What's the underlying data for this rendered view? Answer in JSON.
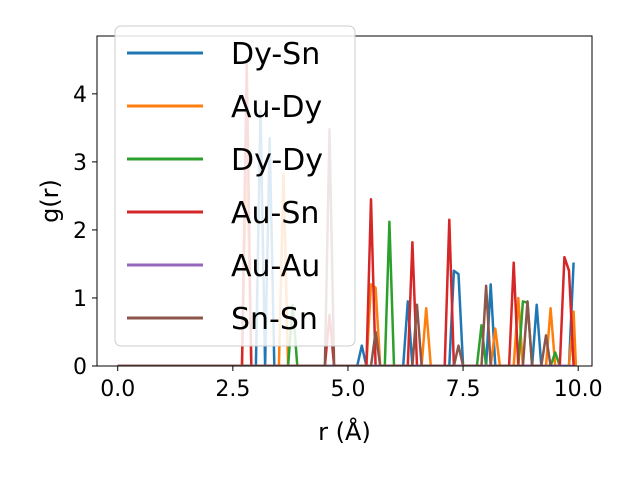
{
  "chart_data": {
    "type": "line",
    "xlabel": "r (Å)",
    "ylabel": "g(r)",
    "xlim": [
      -0.45,
      10.3
    ],
    "ylim": [
      0,
      4.85
    ],
    "xticks": [
      0.0,
      2.5,
      5.0,
      7.5,
      10.0
    ],
    "xtick_labels": [
      "0.0",
      "2.5",
      "5.0",
      "7.5",
      "10.0"
    ],
    "yticks": [
      0,
      1,
      2,
      3,
      4
    ],
    "ytick_labels": [
      "0",
      "1",
      "2",
      "3",
      "4"
    ],
    "grid": false,
    "legend_position": "upper-left",
    "series": [
      {
        "name": "Dy-Sn",
        "color": "#1f77b4",
        "points": [
          [
            0,
            0
          ],
          [
            3.0,
            0
          ],
          [
            3.1,
            3.75
          ],
          [
            3.2,
            0
          ],
          [
            3.3,
            3.35
          ],
          [
            3.4,
            0
          ],
          [
            5.2,
            0
          ],
          [
            5.3,
            0.3
          ],
          [
            5.4,
            0
          ],
          [
            6.2,
            0
          ],
          [
            6.3,
            0.95
          ],
          [
            6.4,
            0
          ],
          [
            7.2,
            0
          ],
          [
            7.3,
            1.4
          ],
          [
            7.4,
            1.35
          ],
          [
            7.5,
            0
          ],
          [
            8.0,
            0
          ],
          [
            8.1,
            1.2
          ],
          [
            8.2,
            0
          ],
          [
            9.0,
            0
          ],
          [
            9.1,
            0.9
          ],
          [
            9.2,
            0
          ],
          [
            9.8,
            0
          ],
          [
            9.9,
            1.52
          ]
        ]
      },
      {
        "name": "Au-Dy",
        "color": "#ff7f0e",
        "points": [
          [
            0,
            0
          ],
          [
            2.7,
            0
          ],
          [
            2.8,
            3.2
          ],
          [
            2.9,
            0
          ],
          [
            3.5,
            0
          ],
          [
            3.6,
            2.82
          ],
          [
            3.7,
            0
          ],
          [
            5.4,
            0
          ],
          [
            5.5,
            1.2
          ],
          [
            5.6,
            1.15
          ],
          [
            5.7,
            0
          ],
          [
            6.6,
            0
          ],
          [
            6.7,
            0.85
          ],
          [
            6.8,
            0
          ],
          [
            8.1,
            0
          ],
          [
            8.2,
            0.55
          ],
          [
            8.3,
            0
          ],
          [
            8.6,
            0
          ],
          [
            8.7,
            1.0
          ],
          [
            8.8,
            0
          ],
          [
            9.3,
            0
          ],
          [
            9.4,
            0.85
          ],
          [
            9.5,
            0
          ],
          [
            9.8,
            0
          ],
          [
            9.9,
            0.8
          ],
          [
            9.95,
            0
          ]
        ]
      },
      {
        "name": "Dy-Dy",
        "color": "#2ca02c",
        "points": [
          [
            0,
            0
          ],
          [
            3.7,
            0
          ],
          [
            3.8,
            0.9
          ],
          [
            3.9,
            0
          ],
          [
            5.8,
            0
          ],
          [
            5.9,
            2.12
          ],
          [
            6.0,
            0
          ],
          [
            7.8,
            0
          ],
          [
            7.9,
            0.6
          ],
          [
            8.0,
            0
          ],
          [
            8.7,
            0
          ],
          [
            8.8,
            0.95
          ],
          [
            8.9,
            0.93
          ],
          [
            9.0,
            0
          ],
          [
            9.4,
            0
          ],
          [
            9.5,
            0.2
          ],
          [
            9.6,
            0
          ]
        ]
      },
      {
        "name": "Au-Sn",
        "color": "#d62728",
        "points": [
          [
            0,
            0
          ],
          [
            2.7,
            0
          ],
          [
            2.8,
            4.45
          ],
          [
            2.9,
            0
          ],
          [
            4.5,
            0
          ],
          [
            4.6,
            0.75
          ],
          [
            4.7,
            0
          ],
          [
            5.4,
            0
          ],
          [
            5.5,
            2.45
          ],
          [
            5.6,
            0
          ],
          [
            6.3,
            0
          ],
          [
            6.4,
            1.82
          ],
          [
            6.5,
            0
          ],
          [
            7.1,
            0
          ],
          [
            7.2,
            2.15
          ],
          [
            7.3,
            0
          ],
          [
            8.5,
            0
          ],
          [
            8.6,
            1.52
          ],
          [
            8.7,
            0
          ],
          [
            9.6,
            0
          ],
          [
            9.7,
            1.6
          ],
          [
            9.8,
            1.4
          ],
          [
            9.9,
            0
          ]
        ]
      },
      {
        "name": "Au-Au",
        "color": "#9467bd",
        "points": [
          [
            0,
            0
          ],
          [
            9.9,
            0
          ]
        ]
      },
      {
        "name": "Sn-Sn",
        "color": "#8c564b",
        "points": [
          [
            0,
            0
          ],
          [
            4.5,
            0
          ],
          [
            4.6,
            3.48
          ],
          [
            4.7,
            0
          ],
          [
            5.5,
            0
          ],
          [
            5.6,
            0.5
          ],
          [
            5.7,
            0
          ],
          [
            6.4,
            0
          ],
          [
            6.5,
            0.9
          ],
          [
            6.6,
            0
          ],
          [
            7.3,
            0
          ],
          [
            7.4,
            0.3
          ],
          [
            7.5,
            0
          ],
          [
            7.9,
            0
          ],
          [
            8.0,
            1.18
          ],
          [
            8.1,
            0
          ],
          [
            8.8,
            0
          ],
          [
            8.9,
            0.95
          ],
          [
            9.0,
            0
          ],
          [
            9.2,
            0
          ],
          [
            9.3,
            0.45
          ],
          [
            9.4,
            0
          ]
        ]
      }
    ]
  }
}
